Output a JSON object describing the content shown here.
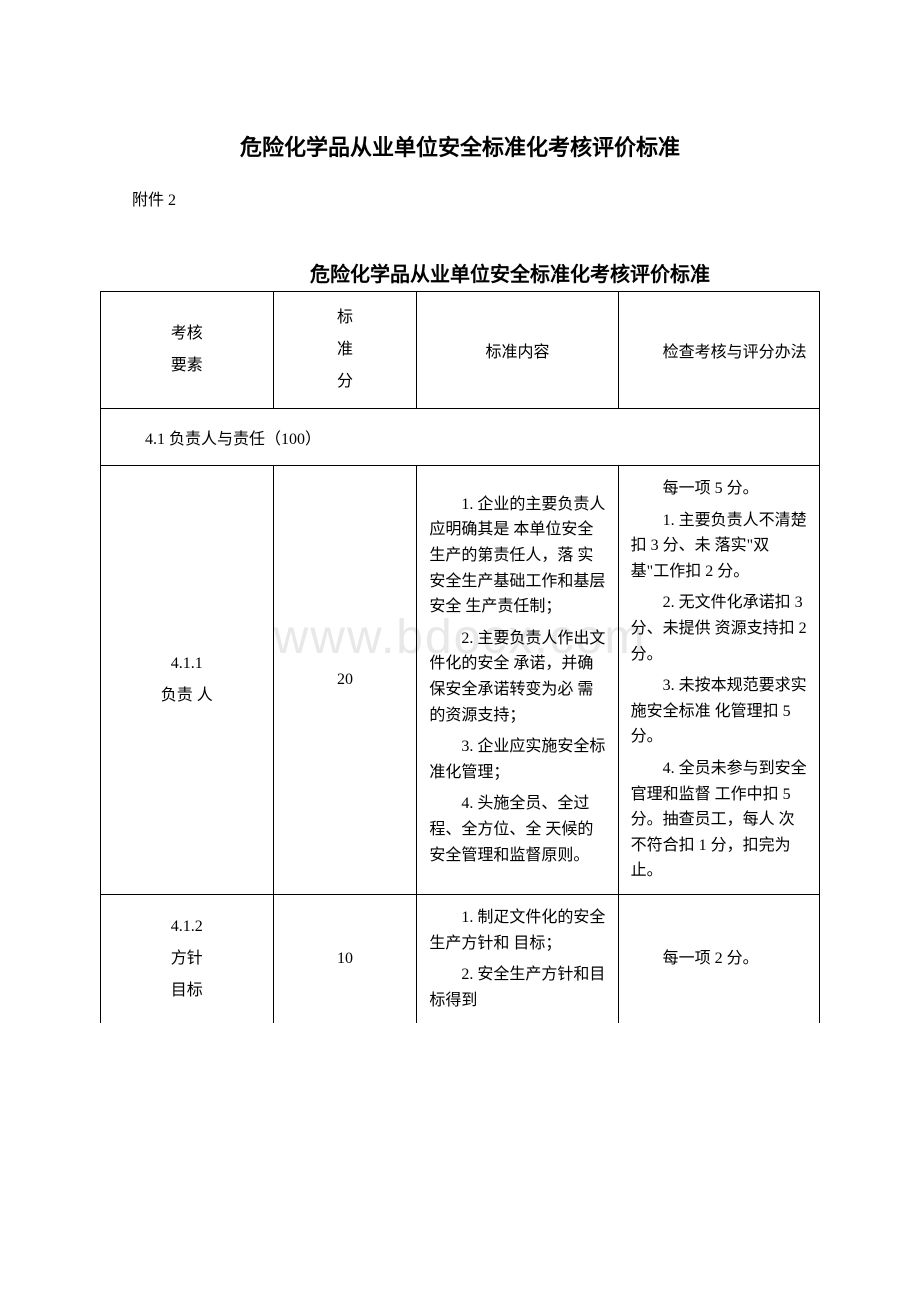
{
  "document": {
    "main_title": "危险化学品从业单位安全标准化考核评价标准",
    "attachment_label": "附件 2",
    "sub_title": "危险化学品从业单位安全标准化考核评价标准",
    "watermark": "www.bdocx.com"
  },
  "table": {
    "headers": {
      "col1": "考核\n要素",
      "col2_line1": "标",
      "col2_line2": "准",
      "col2_line3": "分",
      "col3": "标准内容",
      "col4": "检查考核与评分办法"
    },
    "section_header": "4.1 负责人与责任（100）",
    "row1": {
      "element_line1": "4.1.1",
      "element_line2": "负责 人",
      "score": "20",
      "content_p1": "1. 企业的主要负责人应明确其是 本单位安全生产的第责任人，落 实安全生产基础工作和基层安全 生产责任制；",
      "content_p2": "2. 主要负责人作出文件化的安全 承诺，并确保安全承诺转变为必 需的资源支持；",
      "content_p3": "3. 企业应实施安全标准化管理；",
      "content_p4": "4. 头施全员、全过程、全方位、全 天候的安全管理和监督原则。",
      "method_p1": "每一项 5 分。",
      "method_p2": "1. 主要负责人不清楚扣 3 分、未 落实\"双基\"工作扣 2 分。",
      "method_p3": "2. 无文件化承诺扣 3 分、未提供 资源支持扣 2 分。",
      "method_p4": "3. 未按本规范要求实施安全标准 化管理扣 5 分。",
      "method_p5": "4. 全员未参与到安全官理和监督 工作中扣 5 分。抽查员工，每人 次不符合扣 1 分，扣完为止。"
    },
    "row2": {
      "element_line1": "4.1.2",
      "element_line2": "方针",
      "element_line3": "目标",
      "score": "10",
      "content_p1": "1. 制疋文件化的安全生产方针和 目标；",
      "content_p2": "2. 安全生产方针和目标得到",
      "method_p1": "每一项 2 分。"
    }
  }
}
